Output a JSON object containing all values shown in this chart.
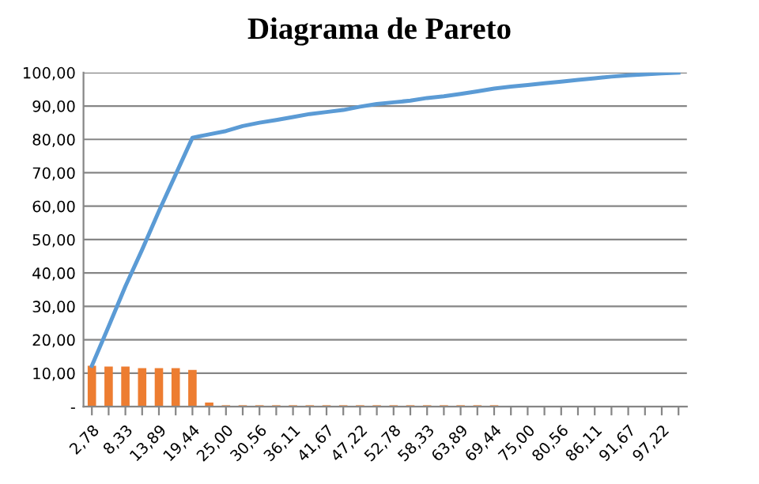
{
  "chart_data": {
    "type": "bar",
    "title": "Diagrama de Pareto",
    "categories": [
      "2,78",
      null,
      "8,33",
      null,
      "13,89",
      null,
      "19,44",
      null,
      "25,00",
      null,
      "30,56",
      null,
      "36,11",
      null,
      "41,67",
      null,
      "47,22",
      null,
      "52,78",
      null,
      "58,33",
      null,
      "63,89",
      null,
      "69,44",
      null,
      "75,00",
      null,
      "80,56",
      null,
      "86,11",
      null,
      "91,67",
      null,
      "97,22",
      null
    ],
    "series": [
      {
        "color": "#ed7d31",
        "values": [
          12.2,
          12.0,
          12.0,
          11.5,
          11.5,
          11.5,
          11.0,
          1.2,
          0.4,
          0.4,
          0.4,
          0.4,
          0.4,
          0.4,
          0.4,
          0.4,
          0.4,
          0.4,
          0.4,
          0.4,
          0.4,
          0.4,
          0.4,
          0.4,
          0.4,
          0,
          0,
          0,
          0,
          0,
          0,
          0,
          0,
          0,
          0,
          0
        ]
      },
      {
        "type": "line",
        "color": "#5b9bd5",
        "values": [
          12.2,
          24,
          36,
          47,
          58.5,
          69.5,
          80.5,
          81.5,
          82.5,
          84,
          85,
          85.8,
          86.7,
          87.6,
          88.2,
          88.8,
          89.8,
          90.6,
          91.1,
          91.6,
          92.4,
          92.9,
          93.6,
          94.4,
          95.2,
          95.8,
          96.3,
          96.8,
          97.3,
          97.8,
          98.3,
          98.8,
          99.2,
          99.5,
          99.8,
          100
        ]
      }
    ],
    "ylim": [
      0,
      100
    ],
    "yticks": [
      {
        "value": 0,
        "label": "-"
      },
      {
        "value": 10,
        "label": "10,00"
      },
      {
        "value": 20,
        "label": "20,00"
      },
      {
        "value": 30,
        "label": "30,00"
      },
      {
        "value": 40,
        "label": "40,00"
      },
      {
        "value": 50,
        "label": "50,00"
      },
      {
        "value": 60,
        "label": "60,00"
      },
      {
        "value": 70,
        "label": "70,00"
      },
      {
        "value": 80,
        "label": "80,00"
      },
      {
        "value": 90,
        "label": "90,00"
      },
      {
        "value": 100,
        "label": "100,00"
      }
    ],
    "grid": "y",
    "legend": false,
    "marker": "none"
  }
}
